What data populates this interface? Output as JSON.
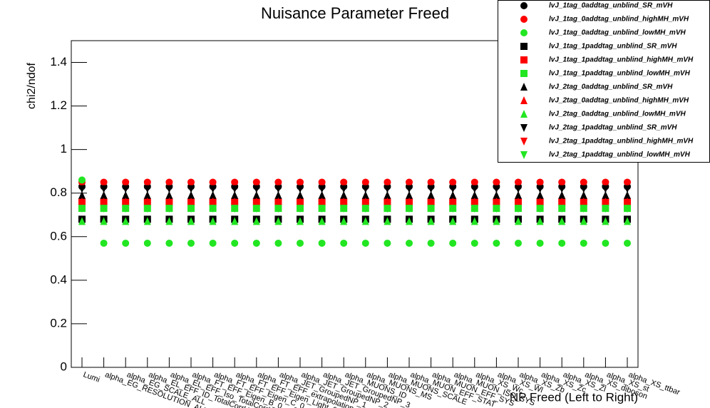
{
  "chart_data": {
    "type": "scatter",
    "title": "Nuisance Parameter Freed",
    "x_label": "NP Freed (Left to Right)",
    "y_label": "chi2/ndof",
    "ylim": [
      0,
      1.5
    ],
    "yticks": [
      0,
      0.2,
      0.4,
      0.6,
      0.8,
      1,
      1.2,
      1.4
    ],
    "categories": [
      "Lumi",
      "alpha_EG_RESOLUTION_ALL",
      "alpha_EG_SCALE_ALL",
      "alpha_EL_EFF_ID_TotalCorrUncertainty",
      "alpha_EL_EFF_Iso_TotalCorrUncertainty",
      "alpha_FT_EFF_Eigen_B_0",
      "alpha_FT_EFF_Eigen_C_0",
      "alpha_FT_EFF_Eigen_Light_0",
      "alpha_FT_EFF_extrapolation",
      "alpha_JET_GroupedNP_1",
      "alpha_JET_GroupedNP_2",
      "alpha_JET_GroupedNP_3",
      "alpha_MUONS_ID",
      "alpha_MUONS_MS",
      "alpha_MUONS_SCALE",
      "alpha_MUON_EFF_STAT",
      "alpha_MUON_EFF_SYS",
      "alpha_MUON_ISO_SYS",
      "alpha_XS_Wc",
      "alpha_XS_Wl",
      "alpha_XS_Zb",
      "alpha_XS_Zc",
      "alpha_XS_Zl",
      "alpha_XS_diboson",
      "alpha_XS_st",
      "alpha_XS_ttbar"
    ],
    "series": [
      {
        "name": "lvJ_1tag_0addtag_unblind_SR_mVH",
        "color": "#000000",
        "marker": "circle",
        "values": [
          0.83,
          0.83,
          0.83,
          0.83,
          0.83,
          0.83,
          0.83,
          0.83,
          0.83,
          0.83,
          0.83,
          0.83,
          0.83,
          0.83,
          0.83,
          0.83,
          0.83,
          0.83,
          0.83,
          0.83,
          0.83,
          0.83,
          0.83,
          0.83,
          0.83,
          0.83
        ]
      },
      {
        "name": "lvJ_1tag_0addtag_unblind_highMH_mVH",
        "color": "#ff0000",
        "marker": "circle",
        "values": [
          0.85,
          0.85,
          0.85,
          0.85,
          0.85,
          0.85,
          0.85,
          0.85,
          0.85,
          0.85,
          0.85,
          0.85,
          0.85,
          0.85,
          0.85,
          0.85,
          0.85,
          0.85,
          0.85,
          0.85,
          0.85,
          0.85,
          0.85,
          0.85,
          0.85,
          0.85
        ]
      },
      {
        "name": "lvJ_1tag_0addtag_unblind_lowMH_mVH",
        "color": "#22e622",
        "marker": "circle",
        "values": [
          0.86,
          0.57,
          0.57,
          0.57,
          0.57,
          0.57,
          0.57,
          0.57,
          0.57,
          0.57,
          0.57,
          0.57,
          0.57,
          0.57,
          0.57,
          0.57,
          0.57,
          0.57,
          0.57,
          0.57,
          0.57,
          0.57,
          0.57,
          0.57,
          0.57,
          0.57
        ]
      },
      {
        "name": "lvJ_1tag_1paddtag_unblind_SR_mVH",
        "color": "#000000",
        "marker": "square",
        "values": [
          0.68,
          0.68,
          0.68,
          0.68,
          0.68,
          0.68,
          0.68,
          0.68,
          0.68,
          0.68,
          0.68,
          0.68,
          0.68,
          0.68,
          0.68,
          0.68,
          0.68,
          0.68,
          0.68,
          0.68,
          0.68,
          0.68,
          0.68,
          0.68,
          0.68,
          0.68
        ]
      },
      {
        "name": "lvJ_1tag_1paddtag_unblind_highMH_mVH",
        "color": "#ff0000",
        "marker": "square",
        "values": [
          0.76,
          0.76,
          0.76,
          0.76,
          0.76,
          0.76,
          0.76,
          0.76,
          0.76,
          0.76,
          0.76,
          0.76,
          0.76,
          0.76,
          0.76,
          0.76,
          0.76,
          0.76,
          0.76,
          0.76,
          0.76,
          0.76,
          0.76,
          0.76,
          0.76,
          0.76
        ]
      },
      {
        "name": "lvJ_1tag_1paddtag_unblind_lowMH_mVH",
        "color": "#22e622",
        "marker": "square",
        "values": [
          0.73,
          0.73,
          0.73,
          0.73,
          0.73,
          0.73,
          0.73,
          0.73,
          0.73,
          0.73,
          0.73,
          0.73,
          0.73,
          0.73,
          0.73,
          0.73,
          0.73,
          0.73,
          0.73,
          0.73,
          0.73,
          0.73,
          0.73,
          0.73,
          0.73,
          0.73
        ]
      },
      {
        "name": "lvJ_2tag_0addtag_unblind_SR_mVH",
        "color": "#000000",
        "marker": "triangle-up",
        "values": [
          0.79,
          0.79,
          0.79,
          0.79,
          0.79,
          0.79,
          0.79,
          0.79,
          0.79,
          0.79,
          0.79,
          0.79,
          0.79,
          0.79,
          0.79,
          0.79,
          0.79,
          0.79,
          0.79,
          0.79,
          0.79,
          0.79,
          0.79,
          0.79,
          0.79,
          0.79
        ]
      },
      {
        "name": "lvJ_2tag_0addtag_unblind_highMH_mVH",
        "color": "#ff0000",
        "marker": "triangle-up",
        "values": [
          0.76,
          0.76,
          0.76,
          0.76,
          0.76,
          0.76,
          0.76,
          0.76,
          0.76,
          0.76,
          0.76,
          0.76,
          0.76,
          0.76,
          0.76,
          0.76,
          0.76,
          0.76,
          0.76,
          0.76,
          0.76,
          0.76,
          0.76,
          0.76,
          0.76,
          0.76
        ]
      },
      {
        "name": "lvJ_2tag_0addtag_unblind_lowMH_mVH",
        "color": "#22e622",
        "marker": "triangle-up",
        "values": [
          0.67,
          0.67,
          0.67,
          0.67,
          0.67,
          0.67,
          0.67,
          0.67,
          0.67,
          0.67,
          0.67,
          0.67,
          0.67,
          0.67,
          0.67,
          0.67,
          0.67,
          0.67,
          0.67,
          0.67,
          0.67,
          0.67,
          0.67,
          0.67,
          0.67,
          0.67
        ]
      },
      {
        "name": "lvJ_2tag_1paddtag_unblind_SR_mVH",
        "color": "#000000",
        "marker": "triangle-down",
        "values": [
          0.82,
          0.82,
          0.82,
          0.82,
          0.82,
          0.82,
          0.82,
          0.82,
          0.82,
          0.82,
          0.82,
          0.82,
          0.82,
          0.82,
          0.82,
          0.82,
          0.82,
          0.82,
          0.82,
          0.82,
          0.82,
          0.82,
          0.82,
          0.82,
          0.82,
          0.82
        ]
      },
      {
        "name": "lvJ_2tag_1paddtag_unblind_highMH_mVH",
        "color": "#ff0000",
        "marker": "triangle-down",
        "values": [
          0.75,
          0.75,
          0.75,
          0.75,
          0.75,
          0.75,
          0.75,
          0.75,
          0.75,
          0.75,
          0.75,
          0.75,
          0.75,
          0.75,
          0.75,
          0.75,
          0.75,
          0.75,
          0.75,
          0.75,
          0.75,
          0.75,
          0.75,
          0.75,
          0.75,
          0.75
        ]
      },
      {
        "name": "lvJ_2tag_1paddtag_unblind_lowMH_mVH",
        "color": "#22e622",
        "marker": "triangle-down",
        "values": [
          0.73,
          0.73,
          0.73,
          0.73,
          0.73,
          0.73,
          0.73,
          0.73,
          0.73,
          0.73,
          0.73,
          0.73,
          0.73,
          0.73,
          0.73,
          0.73,
          0.73,
          0.73,
          0.73,
          0.73,
          0.73,
          0.73,
          0.73,
          0.73,
          0.73,
          0.73
        ]
      }
    ]
  }
}
